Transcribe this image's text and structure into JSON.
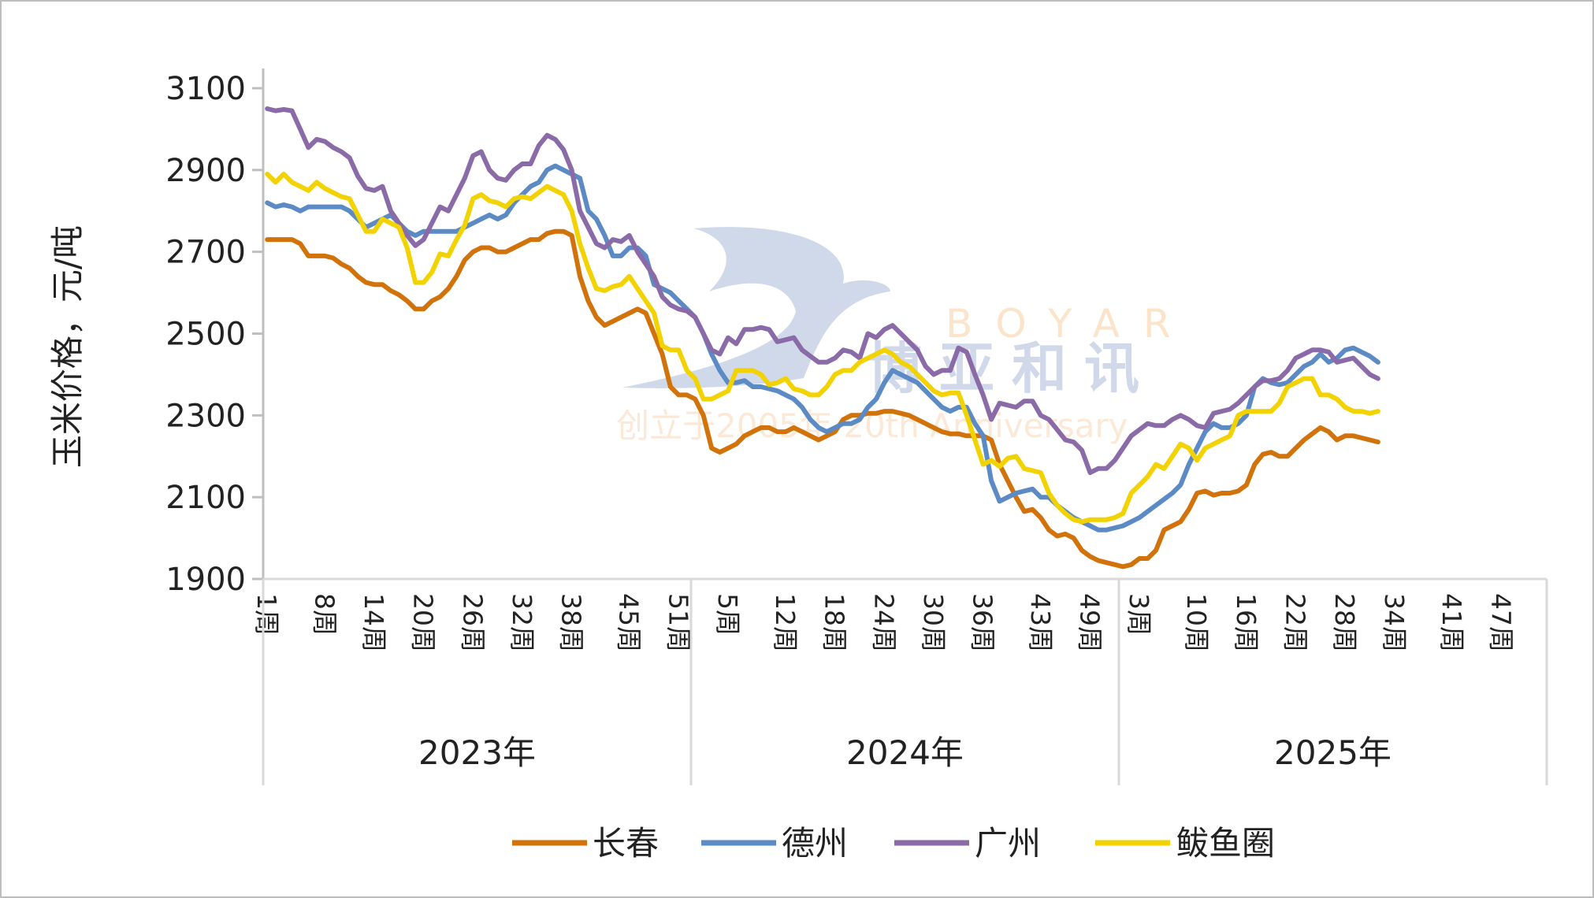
{
  "chart_data": {
    "type": "line",
    "title": "",
    "ylabel": "玉米价格，元/吨",
    "xlabel": "",
    "ylim": [
      1900,
      3100
    ],
    "yticks": [
      "1900",
      "2100",
      "2300",
      "2500",
      "2700",
      "2900",
      "3100"
    ],
    "grid": false,
    "legend_position": "bottom",
    "years": [
      {
        "label": "2023年",
        "weeks": 52,
        "tick_weeks": [
          1,
          8,
          14,
          20,
          26,
          32,
          38,
          45,
          51
        ]
      },
      {
        "label": "2024年",
        "weeks": 52,
        "tick_weeks": [
          5,
          12,
          18,
          24,
          30,
          36,
          43,
          49
        ]
      },
      {
        "label": "2025年",
        "weeks": 52,
        "tick_weeks": [
          3,
          10,
          16,
          22,
          28,
          34,
          41,
          47
        ]
      }
    ],
    "week_suffix": "周",
    "series": [
      {
        "name": "长春",
        "color": "#D2720A",
        "values": {
          "2023": [
            2730,
            2730,
            2730,
            2730,
            2720,
            2690,
            2690,
            2690,
            2685,
            2670,
            2660,
            2640,
            2625,
            2620,
            2620,
            2605,
            2595,
            2580,
            2560,
            2560,
            2580,
            2590,
            2610,
            2640,
            2680,
            2700,
            2710,
            2710,
            2700,
            2700,
            2710,
            2720,
            2730,
            2730,
            2745,
            2750,
            2750,
            2740,
            2640,
            2580,
            2540,
            2520,
            2530,
            2540,
            2550,
            2560,
            2550,
            2500,
            2450,
            2370,
            2350,
            2350
          ],
          "2024": [
            2340,
            2300,
            2220,
            2210,
            2220,
            2230,
            2250,
            2260,
            2270,
            2270,
            2260,
            2260,
            2270,
            2260,
            2250,
            2240,
            2250,
            2260,
            2290,
            2300,
            2300,
            2305,
            2305,
            2310,
            2310,
            2305,
            2300,
            2290,
            2280,
            2270,
            2260,
            2255,
            2255,
            2250,
            2250,
            2250,
            2240,
            2180,
            2140,
            2100,
            2065,
            2070,
            2050,
            2020,
            2005,
            2010,
            2000,
            1970,
            1955,
            1945,
            1940,
            1935
          ],
          "2025": [
            1930,
            1935,
            1950,
            1950,
            1970,
            2020,
            2030,
            2040,
            2070,
            2110,
            2115,
            2105,
            2110,
            2110,
            2115,
            2130,
            2180,
            2205,
            2210,
            2200,
            2200,
            2220,
            2240,
            2255,
            2270,
            2260,
            2240,
            2250,
            2250,
            2245,
            2240,
            2235
          ]
        }
      },
      {
        "name": "德州",
        "color": "#5B8AC4",
        "values": {
          "2023": [
            2820,
            2810,
            2815,
            2810,
            2800,
            2810,
            2810,
            2810,
            2810,
            2810,
            2800,
            2780,
            2760,
            2770,
            2780,
            2790,
            2770,
            2750,
            2740,
            2750,
            2750,
            2750,
            2750,
            2750,
            2760,
            2770,
            2780,
            2790,
            2780,
            2790,
            2820,
            2840,
            2860,
            2870,
            2900,
            2910,
            2900,
            2890,
            2880,
            2800,
            2780,
            2740,
            2690,
            2690,
            2710,
            2710,
            2690,
            2620,
            2610,
            2600,
            2580,
            2560
          ],
          "2024": [
            2540,
            2500,
            2450,
            2410,
            2380,
            2380,
            2385,
            2370,
            2370,
            2365,
            2360,
            2350,
            2340,
            2320,
            2290,
            2270,
            2260,
            2270,
            2280,
            2280,
            2290,
            2320,
            2340,
            2380,
            2410,
            2400,
            2390,
            2380,
            2360,
            2340,
            2320,
            2310,
            2320,
            2320,
            2280,
            2250,
            2140,
            2090,
            2100,
            2110,
            2115,
            2120,
            2100,
            2100,
            2080,
            2065,
            2050,
            2040,
            2030,
            2020,
            2020,
            2025
          ],
          "2025": [
            2030,
            2040,
            2050,
            2065,
            2080,
            2095,
            2110,
            2130,
            2180,
            2220,
            2260,
            2280,
            2270,
            2270,
            2280,
            2300,
            2370,
            2390,
            2380,
            2375,
            2380,
            2400,
            2420,
            2430,
            2450,
            2430,
            2440,
            2460,
            2465,
            2455,
            2445,
            2430
          ]
        }
      },
      {
        "name": "广州",
        "color": "#8A6BA8",
        "values": {
          "2023": [
            3050,
            3045,
            3048,
            3045,
            3000,
            2955,
            2975,
            2970,
            2955,
            2945,
            2930,
            2885,
            2855,
            2850,
            2860,
            2800,
            2770,
            2740,
            2715,
            2730,
            2770,
            2810,
            2800,
            2840,
            2880,
            2935,
            2945,
            2900,
            2880,
            2875,
            2900,
            2915,
            2915,
            2960,
            2985,
            2975,
            2950,
            2900,
            2800,
            2760,
            2720,
            2710,
            2730,
            2725,
            2740,
            2700,
            2670,
            2640,
            2590,
            2570,
            2560,
            2555
          ],
          "2024": [
            2540,
            2500,
            2460,
            2450,
            2490,
            2475,
            2510,
            2510,
            2515,
            2510,
            2480,
            2485,
            2490,
            2460,
            2445,
            2430,
            2430,
            2440,
            2460,
            2455,
            2440,
            2500,
            2490,
            2510,
            2520,
            2500,
            2480,
            2460,
            2420,
            2400,
            2410,
            2410,
            2465,
            2455,
            2400,
            2350,
            2290,
            2330,
            2325,
            2320,
            2335,
            2335,
            2300,
            2290,
            2265,
            2240,
            2235,
            2215,
            2160,
            2170,
            2170,
            2190
          ],
          "2025": [
            2220,
            2250,
            2265,
            2280,
            2275,
            2275,
            2290,
            2300,
            2290,
            2275,
            2270,
            2305,
            2310,
            2315,
            2330,
            2350,
            2370,
            2385,
            2385,
            2390,
            2410,
            2440,
            2450,
            2460,
            2460,
            2455,
            2430,
            2435,
            2440,
            2420,
            2400,
            2390
          ]
        }
      },
      {
        "name": "鲅鱼圈",
        "color": "#F2D200",
        "values": {
          "2023": [
            2890,
            2870,
            2890,
            2870,
            2860,
            2850,
            2870,
            2855,
            2845,
            2835,
            2830,
            2790,
            2750,
            2750,
            2780,
            2770,
            2760,
            2710,
            2625,
            2625,
            2650,
            2695,
            2690,
            2730,
            2765,
            2830,
            2840,
            2825,
            2820,
            2810,
            2830,
            2835,
            2830,
            2845,
            2860,
            2850,
            2840,
            2800,
            2720,
            2660,
            2610,
            2605,
            2615,
            2620,
            2640,
            2610,
            2580,
            2550,
            2470,
            2460,
            2460,
            2410
          ],
          "2024": [
            2390,
            2340,
            2340,
            2350,
            2360,
            2410,
            2410,
            2410,
            2400,
            2375,
            2380,
            2390,
            2365,
            2360,
            2350,
            2350,
            2370,
            2400,
            2410,
            2410,
            2430,
            2440,
            2450,
            2460,
            2450,
            2430,
            2420,
            2400,
            2380,
            2360,
            2350,
            2355,
            2355,
            2300,
            2240,
            2180,
            2190,
            2175,
            2195,
            2200,
            2170,
            2165,
            2160,
            2110,
            2080,
            2060,
            2045,
            2040,
            2045,
            2045,
            2045,
            2050
          ],
          "2025": [
            2060,
            2110,
            2130,
            2150,
            2180,
            2170,
            2200,
            2230,
            2220,
            2190,
            2220,
            2230,
            2240,
            2250,
            2300,
            2310,
            2310,
            2310,
            2310,
            2330,
            2370,
            2380,
            2390,
            2390,
            2350,
            2350,
            2340,
            2320,
            2310,
            2310,
            2305,
            2310
          ]
        }
      }
    ]
  },
  "watermark": {
    "brand_latin": "BOYAR",
    "brand_cn": "博亚和讯",
    "tagline": "创立于2005年 20th Anniversary"
  }
}
